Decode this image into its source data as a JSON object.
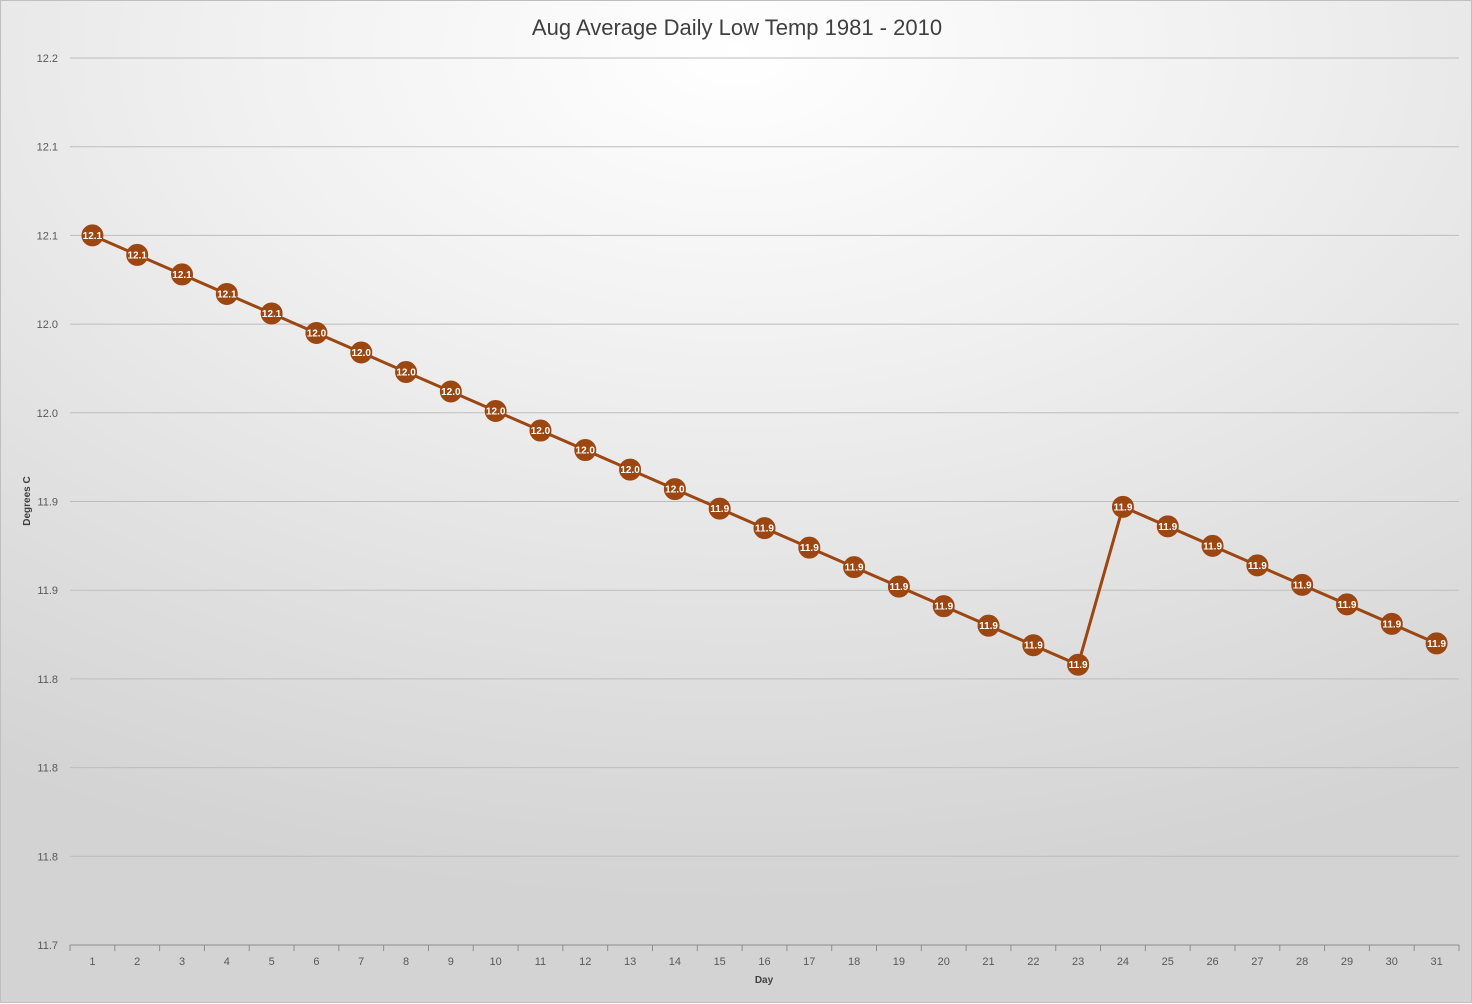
{
  "chart_data": {
    "type": "line",
    "title": "Aug Average Daily Low Temp 1981 - 2010",
    "xlabel": "Day",
    "ylabel": "Degrees C",
    "categories": [
      "1",
      "2",
      "3",
      "4",
      "5",
      "6",
      "7",
      "8",
      "9",
      "10",
      "11",
      "12",
      "13",
      "14",
      "15",
      "16",
      "17",
      "18",
      "19",
      "20",
      "21",
      "22",
      "23",
      "24",
      "25",
      "26",
      "27",
      "28",
      "29",
      "30",
      "31"
    ],
    "y_tick_labels": [
      "11.7",
      "11.8",
      "11.8",
      "11.8",
      "11.9",
      "11.9",
      "12.0",
      "12.0",
      "12.1",
      "12.1",
      "12.2"
    ],
    "ylim": [
      11.7,
      12.2
    ],
    "series": [
      {
        "name": "",
        "values": [
          12.1,
          12.089,
          12.078,
          12.067,
          12.056,
          12.045,
          12.034,
          12.023,
          12.012,
          12.001,
          11.99,
          11.979,
          11.968,
          11.957,
          11.946,
          11.935,
          11.924,
          11.913,
          11.902,
          11.891,
          11.88,
          11.869,
          11.858,
          11.947,
          11.936,
          11.925,
          11.914,
          11.903,
          11.892,
          11.881,
          11.87
        ],
        "labels": [
          "12.1",
          "12.1",
          "12.1",
          "12.1",
          "12.1",
          "12.0",
          "12.0",
          "12.0",
          "12.0",
          "12.0",
          "12.0",
          "12.0",
          "12.0",
          "12.0",
          "11.9",
          "11.9",
          "11.9",
          "11.9",
          "11.9",
          "11.9",
          "11.9",
          "11.9",
          "11.9",
          "11.9",
          "11.9",
          "11.9",
          "11.9",
          "11.9",
          "11.9",
          "11.9",
          "11.9"
        ]
      }
    ],
    "grid": true,
    "legend": "none",
    "colors": {
      "series": "#9c4612",
      "marker_fill": "#9c4612",
      "grid": "#bdbdbd",
      "label": "#ffffff"
    }
  }
}
